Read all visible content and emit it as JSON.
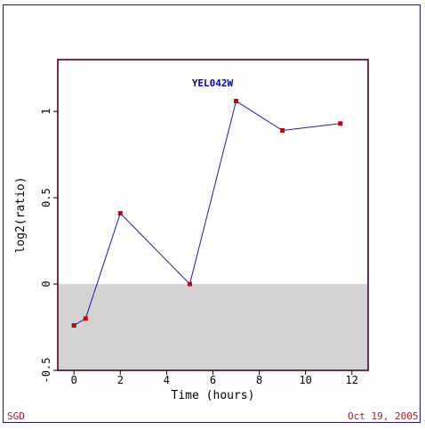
{
  "chart_data": {
    "type": "line",
    "title": "YEL042W",
    "xlabel": "Time (hours)",
    "ylabel": "log2(ratio)",
    "xlim": [
      -0.7,
      12.7
    ],
    "ylim": [
      -0.5,
      1.3
    ],
    "xticks": [
      "0",
      "2",
      "4",
      "6",
      "8",
      "10",
      "12"
    ],
    "yticks": [
      "-0.5",
      "0",
      "0.5",
      "1"
    ],
    "shade_below": 0,
    "grid": false,
    "series": [
      {
        "x": [
          0,
          0.5,
          2,
          5,
          7,
          9,
          11.5
        ],
        "y": [
          -0.24,
          -0.2,
          0.41,
          0.0,
          1.06,
          0.89,
          0.93
        ]
      }
    ]
  },
  "footer": {
    "left": "SGD",
    "right": "Oct 19, 2005"
  },
  "colors": {
    "axes_border": "#7a2b4e",
    "line": "#1a1aa6",
    "markers": "#cc0000",
    "negative_shade": "#d3d3d3",
    "title": "#0000aa",
    "footer_text": "#b2182b"
  }
}
